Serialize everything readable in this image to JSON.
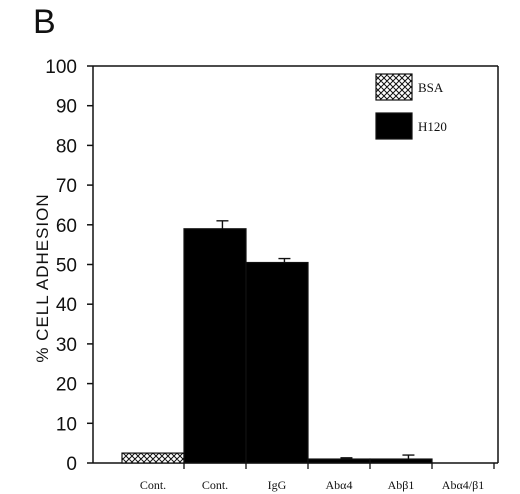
{
  "panel_label": "B",
  "chart_data": {
    "type": "bar",
    "title": "",
    "xlabel": "",
    "ylabel": "% CELL ADHESION",
    "ylim": [
      0,
      100
    ],
    "yticks": [
      0,
      10,
      20,
      30,
      40,
      50,
      60,
      70,
      80,
      90,
      100
    ],
    "categories": [
      "Cont.",
      "Cont.",
      "IgG",
      "Abα4",
      "Abβ1",
      "Abα4/β1"
    ],
    "values": [
      2.5,
      59,
      50.5,
      1,
      1,
      0
    ],
    "errors": [
      0,
      2,
      1,
      0.3,
      1,
      0
    ],
    "bar_series": [
      "BSA",
      "H120",
      "H120",
      "H120",
      "H120",
      "H120"
    ],
    "legend": {
      "position": "top-right",
      "entries": [
        {
          "label": "BSA",
          "pattern": "crosshatch"
        },
        {
          "label": "H120",
          "pattern": "solid",
          "color": "#000000"
        }
      ]
    },
    "grid": false
  }
}
